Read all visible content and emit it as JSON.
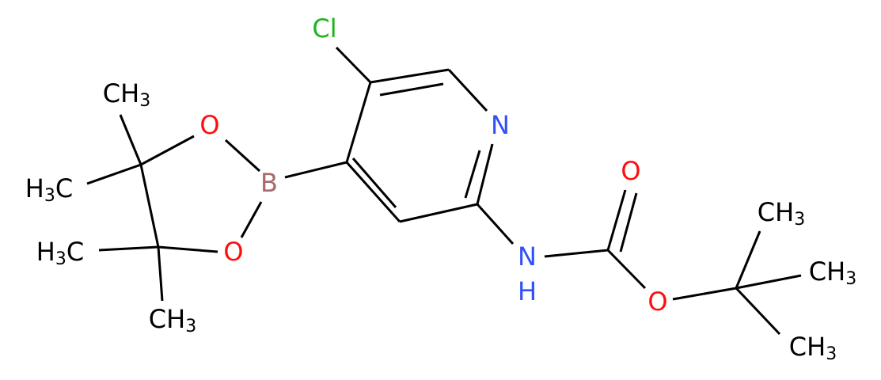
{
  "atoms": [
    {
      "label": "Cl"
    },
    {
      "label": "N"
    },
    {
      "label": "B"
    },
    {
      "label": "O"
    },
    {
      "label": "O"
    },
    {
      "label": "CH",
      "sub": "3"
    },
    {
      "label": "H",
      "sub": "3",
      "tail": "C"
    },
    {
      "label": "H",
      "sub": "3",
      "tail": "C"
    },
    {
      "label": "CH",
      "sub": "3"
    },
    {
      "label": "N",
      "below": "H"
    },
    {
      "label": "O"
    },
    {
      "label": "O"
    },
    {
      "label": "CH",
      "sub": "3"
    },
    {
      "label": "CH",
      "sub": "3"
    },
    {
      "label": "CH",
      "sub": "3"
    }
  ]
}
